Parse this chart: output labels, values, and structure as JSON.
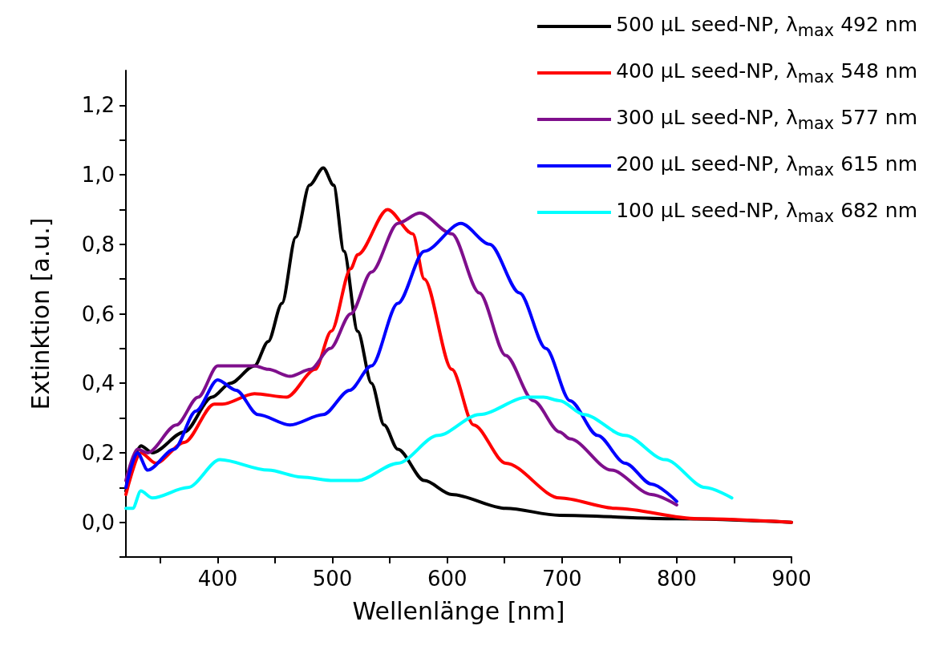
{
  "chart_data": {
    "type": "line",
    "xlabel": "Wellenlänge [nm]",
    "ylabel": "Extinktion [a.u.]",
    "xlim": [
      320,
      900
    ],
    "xticks": [
      {
        "value": 350,
        "label": null
      },
      400,
      {
        "value": 450,
        "label": null
      },
      500,
      {
        "value": 550,
        "label": null
      },
      600,
      {
        "value": 650,
        "label": null
      },
      700,
      {
        "value": 750,
        "label": null
      },
      800,
      {
        "value": 850,
        "label": null
      },
      900
    ],
    "ylim": [
      -0.1,
      1.3
    ],
    "yticks": [
      {
        "value": -0.1,
        "label": null
      },
      {
        "value": 0,
        "label": "0,0"
      },
      {
        "value": 0.1,
        "label": null
      },
      {
        "value": 0.2,
        "label": "0,2"
      },
      {
        "value": 0.3,
        "label": null
      },
      {
        "value": 0.4,
        "label": "0,4"
      },
      {
        "value": 0.5,
        "label": null
      },
      {
        "value": 0.6,
        "label": "0,6"
      },
      {
        "value": 0.7,
        "label": null
      },
      {
        "value": 0.8,
        "label": "0,8"
      },
      {
        "value": 0.9,
        "label": null
      },
      {
        "value": 1.0,
        "label": "1,0"
      },
      {
        "value": 1.1,
        "label": null
      },
      {
        "value": 1.2,
        "label": "1,2"
      }
    ],
    "grid": false,
    "legend": "top right",
    "marker": "none",
    "line_style": "solid",
    "series": [
      {
        "name": "500 µL seed-NP, λ$_{max}$ 492 nm",
        "color": "#000000",
        "x": [
          320,
          333,
          343,
          371,
          395,
          411,
          432,
          444,
          456,
          468,
          480,
          492,
          501,
          510,
          522,
          534,
          545,
          557,
          580,
          604,
          651,
          698,
          800,
          900
        ],
        "values": [
          0.09,
          0.22,
          0.2,
          0.26,
          0.36,
          0.4,
          0.45,
          0.52,
          0.63,
          0.82,
          0.97,
          1.02,
          0.97,
          0.78,
          0.55,
          0.4,
          0.28,
          0.21,
          0.12,
          0.08,
          0.04,
          0.02,
          0.01,
          0.0
        ]
      },
      {
        "name": "400 µL seed-NP, λ$_{max}$ 548 nm",
        "color": "#ff0000",
        "x": [
          320,
          333,
          346,
          371,
          397,
          404,
          432,
          460,
          485,
          499,
          516,
          522,
          548,
          570,
          580,
          604,
          623,
          651,
          698,
          747,
          818,
          900
        ],
        "values": [
          0.08,
          0.2,
          0.17,
          0.23,
          0.34,
          0.34,
          0.37,
          0.36,
          0.44,
          0.55,
          0.73,
          0.77,
          0.9,
          0.83,
          0.7,
          0.44,
          0.28,
          0.17,
          0.07,
          0.04,
          0.01,
          0.0
        ]
      },
      {
        "name": "300 µL seed-NP, λ$_{max}$ 577 nm",
        "color": "#7f0f8c",
        "x": [
          320,
          330,
          339,
          364,
          383,
          400,
          432,
          444,
          463,
          481,
          498,
          516,
          534,
          557,
          576,
          604,
          628,
          651,
          675,
          698,
          707,
          743,
          778,
          800
        ],
        "values": [
          0.12,
          0.21,
          0.2,
          0.28,
          0.36,
          0.45,
          0.45,
          0.44,
          0.42,
          0.44,
          0.5,
          0.6,
          0.72,
          0.86,
          0.89,
          0.83,
          0.66,
          0.48,
          0.35,
          0.26,
          0.24,
          0.15,
          0.08,
          0.05
        ]
      },
      {
        "name": "200 µL seed-NP, λ$_{max}$ 615 nm",
        "color": "#0000ff",
        "x": [
          320,
          330,
          339,
          362,
          381,
          400,
          416,
          435,
          463,
          492,
          515,
          534,
          557,
          580,
          612,
          637,
          663,
          686,
          707,
          731,
          755,
          778,
          800
        ],
        "values": [
          0.1,
          0.2,
          0.15,
          0.21,
          0.32,
          0.41,
          0.38,
          0.31,
          0.28,
          0.31,
          0.38,
          0.45,
          0.63,
          0.78,
          0.86,
          0.8,
          0.66,
          0.5,
          0.35,
          0.25,
          0.17,
          0.11,
          0.06
        ]
      },
      {
        "name": "100 µL seed-NP, λ$_{max}$ 682 nm",
        "color": "#00ffff",
        "x": [
          320,
          326,
          333,
          343,
          374,
          402,
          444,
          473,
          501,
          515,
          522,
          557,
          592,
          628,
          670,
          684,
          698,
          719,
          755,
          790,
          825,
          848
        ],
        "values": [
          0.04,
          0.04,
          0.09,
          0.07,
          0.1,
          0.18,
          0.15,
          0.13,
          0.12,
          0.12,
          0.12,
          0.17,
          0.25,
          0.31,
          0.36,
          0.36,
          0.35,
          0.31,
          0.25,
          0.18,
          0.1,
          0.07
        ]
      }
    ]
  }
}
